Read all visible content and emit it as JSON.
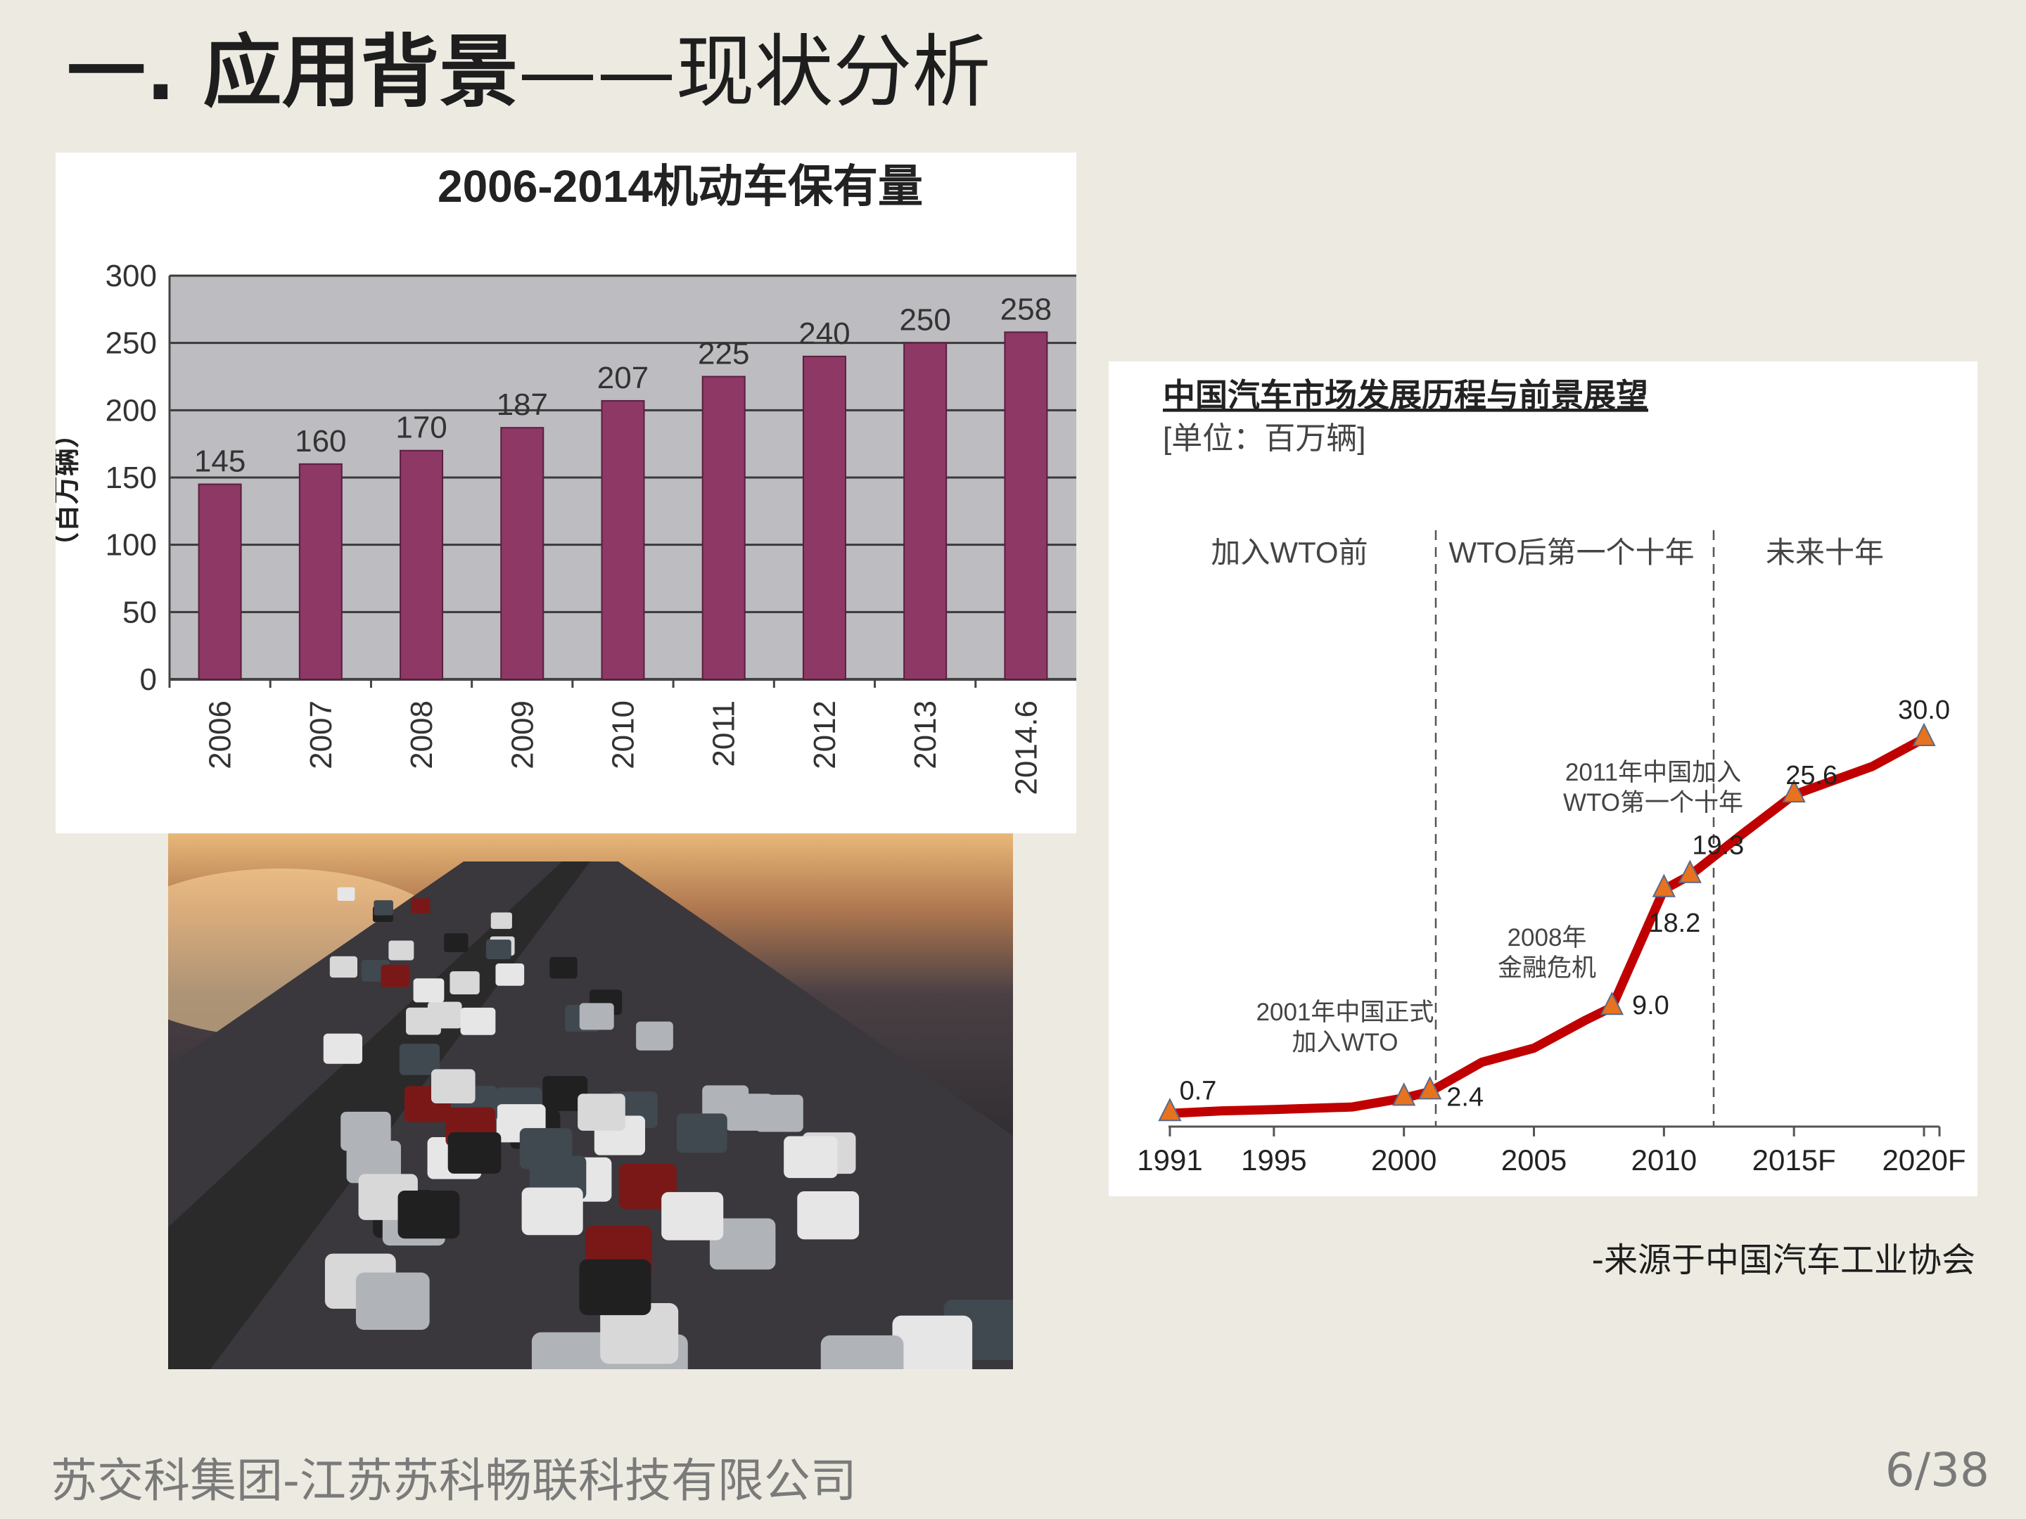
{
  "slide": {
    "title_bold": "一. 应用背景",
    "title_rest": "——现状分析",
    "source_note": "-来源于中国汽车工业协会",
    "footer_company": "苏交科集团-江苏苏科畅联科技有限公司",
    "page_number": "6/38"
  },
  "chart_data": [
    {
      "type": "bar",
      "title": "2006-2014机动车保有量",
      "ylabel": "（百万辆）",
      "xlabel": "",
      "categories": [
        "2006",
        "2007",
        "2008",
        "2009",
        "2010",
        "2011",
        "2012",
        "2013",
        "2014.6"
      ],
      "values": [
        145,
        160,
        170,
        187,
        207,
        225,
        240,
        250,
        258
      ],
      "value_labels": [
        "145",
        "160",
        "170",
        "187",
        "207",
        "225",
        "240",
        "250",
        "258"
      ],
      "yticks": [
        "0",
        "50",
        "100",
        "150",
        "200",
        "250",
        "300"
      ],
      "ylim": [
        0,
        300
      ],
      "grid": true,
      "colors": {
        "bar": "#8e3866",
        "plot_bg": "#bdbcc0",
        "grid": "#3a3a3a"
      }
    },
    {
      "type": "line",
      "title": "中国汽车市场发展历程与前景展望",
      "subtitle": "[单位：百万辆]",
      "xticks": [
        "1991",
        "1995",
        "2000",
        "2005",
        "2010",
        "2015F",
        "2020F"
      ],
      "periods": [
        "加入WTO前",
        "WTO后第一个十年",
        "未来十年"
      ],
      "series": [
        {
          "x": [
            1991,
            1993,
            1995,
            1998,
            2000,
            2001,
            2003,
            2005,
            2007,
            2008,
            2010,
            2011,
            2013,
            2015,
            2018,
            2020
          ],
          "y": [
            0.7,
            0.9,
            1.0,
            1.2,
            1.9,
            2.4,
            4.7,
            5.8,
            8.0,
            9.0,
            18.2,
            19.3,
            22.5,
            25.6,
            27.8,
            30.0
          ]
        }
      ],
      "markers": [
        {
          "x": 1991,
          "y": 0.7,
          "label": "0.7"
        },
        {
          "x": 2000,
          "y": 1.9,
          "label": ""
        },
        {
          "x": 2001,
          "y": 2.4,
          "label": "2.4"
        },
        {
          "x": 2008,
          "y": 9.0,
          "label": "9.0"
        },
        {
          "x": 2010,
          "y": 18.2,
          "label": "18.2"
        },
        {
          "x": 2011,
          "y": 19.3,
          "label": "19.3"
        },
        {
          "x": 2015,
          "y": 25.6,
          "label": "25.6"
        },
        {
          "x": 2020,
          "y": 30.0,
          "label": "30.0"
        }
      ],
      "annotations": [
        {
          "lines": [
            "2001年中国正式",
            "加入WTO"
          ]
        },
        {
          "lines": [
            "2008年",
            "金融危机"
          ]
        },
        {
          "lines": [
            "2011年中国加入",
            "WTO第一个十年"
          ]
        }
      ],
      "colors": {
        "line": "#c00000",
        "marker": "#e8731e",
        "marker_edge": "#5a6a8a"
      }
    }
  ],
  "photo": {
    "description_icon": "traffic-jam-photo"
  }
}
